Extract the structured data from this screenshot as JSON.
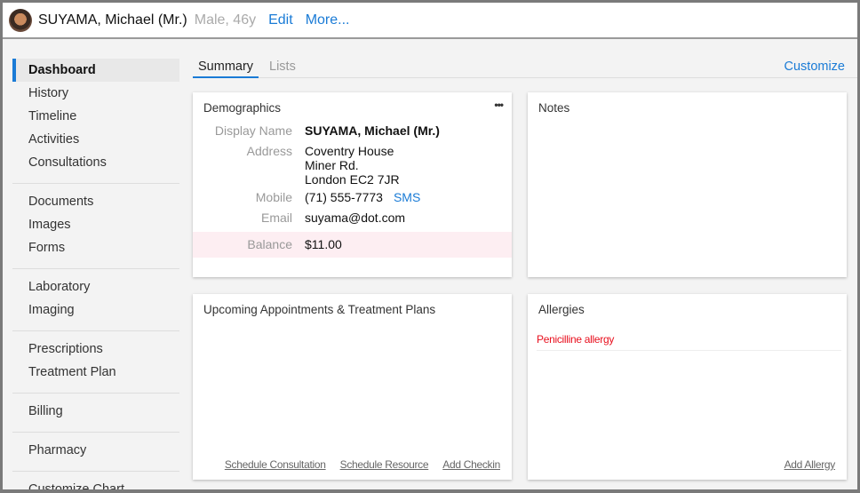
{
  "header": {
    "patient_name": "SUYAMA, Michael (Mr.)",
    "meta": "Male, 46y",
    "edit": "Edit",
    "more": "More..."
  },
  "sidebar": {
    "groups": [
      [
        "Dashboard",
        "History",
        "Timeline",
        "Activities",
        "Consultations"
      ],
      [
        "Documents",
        "Images",
        "Forms"
      ],
      [
        "Laboratory",
        "Imaging"
      ],
      [
        "Prescriptions",
        "Treatment Plan"
      ],
      [
        "Billing"
      ],
      [
        "Pharmacy"
      ],
      [
        "Customize Chart"
      ]
    ],
    "active": "Dashboard"
  },
  "tabs": {
    "summary": "Summary",
    "lists": "Lists",
    "customize": "Customize"
  },
  "demographics": {
    "title": "Demographics",
    "menu": "•••",
    "display_name_label": "Display Name",
    "display_name": "SUYAMA, Michael (Mr.)",
    "address_label": "Address",
    "address": [
      "Coventry House",
      "Miner Rd.",
      "London EC2 7JR"
    ],
    "mobile_label": "Mobile",
    "mobile": "(71) 555-7773",
    "sms": "SMS",
    "email_label": "Email",
    "email": "suyama@dot.com",
    "balance_label": "Balance",
    "balance": "$11.00"
  },
  "notes": {
    "title": "Notes"
  },
  "appointments": {
    "title": "Upcoming Appointments & Treatment Plans",
    "links": [
      "Schedule Consultation",
      "Schedule Resource",
      "Add Checkin"
    ]
  },
  "allergies": {
    "title": "Allergies",
    "items": [
      "Penicilline allergy"
    ],
    "add": "Add Allergy"
  },
  "colors": {
    "accent": "#1a7bd6",
    "allergy": "#e8101e",
    "balance_bg": "#fdeef2"
  }
}
